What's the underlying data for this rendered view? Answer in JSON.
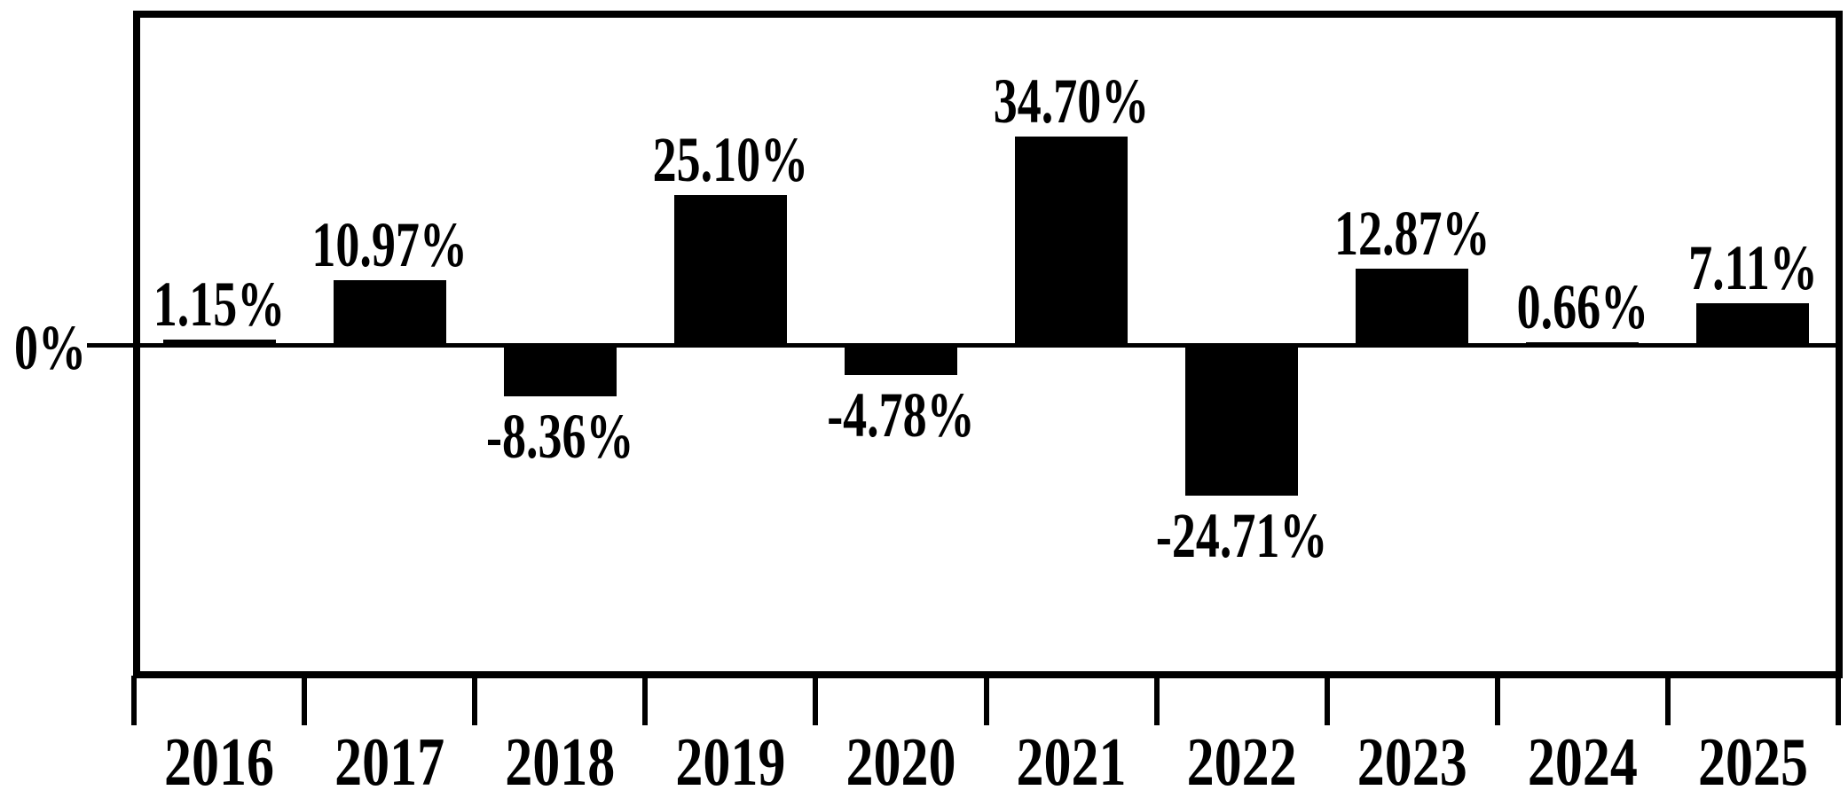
{
  "chart_data": {
    "type": "bar",
    "title": "",
    "xlabel": "",
    "ylabel": "",
    "y_zero_label": "0%",
    "categories": [
      "2016",
      "2017",
      "2018",
      "2019",
      "2020",
      "2021",
      "2022",
      "2023",
      "2024",
      "2025"
    ],
    "values": [
      1.15,
      10.97,
      -8.36,
      25.1,
      -4.78,
      34.7,
      -24.71,
      12.87,
      0.66,
      7.11
    ],
    "value_labels": [
      "1.15%",
      "10.97%",
      "-8.36%",
      "25.10%",
      "-4.78%",
      "34.70%",
      "-24.71%",
      "12.87%",
      "0.66%",
      "7.11%"
    ],
    "bar_color": "#000000",
    "background_color": "#ffffff",
    "axis_color": "#000000",
    "ylim": [
      -54,
      54
    ],
    "grid": false,
    "legend": "none",
    "x_ticks_between_categories": true
  }
}
